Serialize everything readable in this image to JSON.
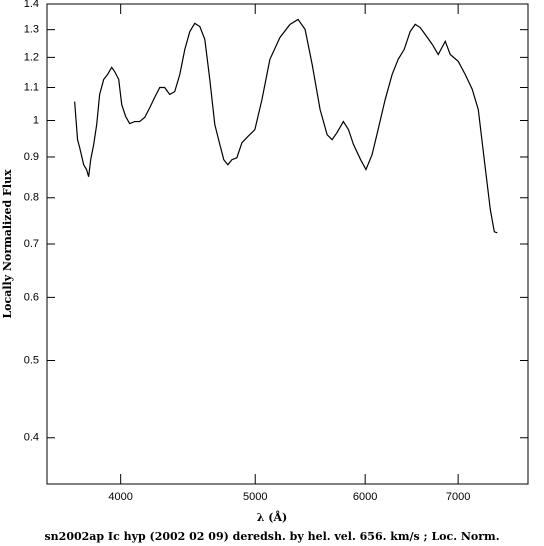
{
  "chart_data": {
    "type": "line",
    "caption": "sn2002ap Ic hyp (2002 02 09) deredsh. by hel. vel.   656. km/s ;  Loc. Norm.",
    "xlabel": "λ (Å)",
    "ylabel": "Locally Normalized Flux",
    "xlog": true,
    "ylog": true,
    "color": "#000000",
    "xlim": [
      3540,
      7860
    ],
    "ylim": [
      0.35,
      1.4
    ],
    "xticks": [
      4000,
      5000,
      6000,
      7000
    ],
    "yticks": [
      0.4,
      0.5,
      0.6,
      0.7,
      0.8,
      0.9,
      1,
      1.1,
      1.2,
      1.3,
      1.4
    ],
    "x": [
      3706,
      3724,
      3737,
      3762,
      3780,
      3793,
      3806,
      3825,
      3844,
      3863,
      3889,
      3914,
      3941,
      3960,
      3987,
      4007,
      4033,
      4060,
      4094,
      4128,
      4163,
      4198,
      4232,
      4268,
      4303,
      4339,
      4375,
      4412,
      4449,
      4486,
      4523,
      4561,
      4599,
      4637,
      4676,
      4715,
      4746,
      4778,
      4810,
      4850,
      4891,
      4940,
      4997,
      5056,
      5123,
      5209,
      5297,
      5368,
      5431,
      5495,
      5568,
      5633,
      5680,
      5727,
      5787,
      5836,
      5885,
      5955,
      6008,
      6069,
      6130,
      6202,
      6274,
      6337,
      6401,
      6465,
      6519,
      6573,
      6628,
      6706,
      6773,
      6852,
      6909,
      7002,
      7083,
      7166,
      7238,
      7310,
      7384,
      7433,
      7470
    ],
    "values": [
      1.056,
      0.946,
      0.925,
      0.88,
      0.868,
      0.85,
      0.893,
      0.933,
      0.988,
      1.078,
      1.126,
      1.142,
      1.166,
      1.152,
      1.126,
      1.047,
      1.012,
      0.991,
      0.997,
      0.997,
      1.009,
      1.038,
      1.069,
      1.1,
      1.1,
      1.078,
      1.087,
      1.142,
      1.228,
      1.293,
      1.324,
      1.312,
      1.264,
      1.126,
      0.988,
      0.933,
      0.893,
      0.88,
      0.893,
      0.898,
      0.938,
      0.955,
      0.974,
      1.062,
      1.193,
      1.271,
      1.32,
      1.339,
      1.301,
      1.176,
      1.032,
      0.96,
      0.946,
      0.966,
      0.997,
      0.974,
      0.933,
      0.893,
      0.868,
      0.906,
      0.974,
      1.062,
      1.142,
      1.193,
      1.228,
      1.293,
      1.32,
      1.308,
      1.282,
      1.246,
      1.21,
      1.257,
      1.21,
      1.186,
      1.142,
      1.094,
      1.032,
      0.893,
      0.773,
      0.725,
      0.723
    ]
  }
}
